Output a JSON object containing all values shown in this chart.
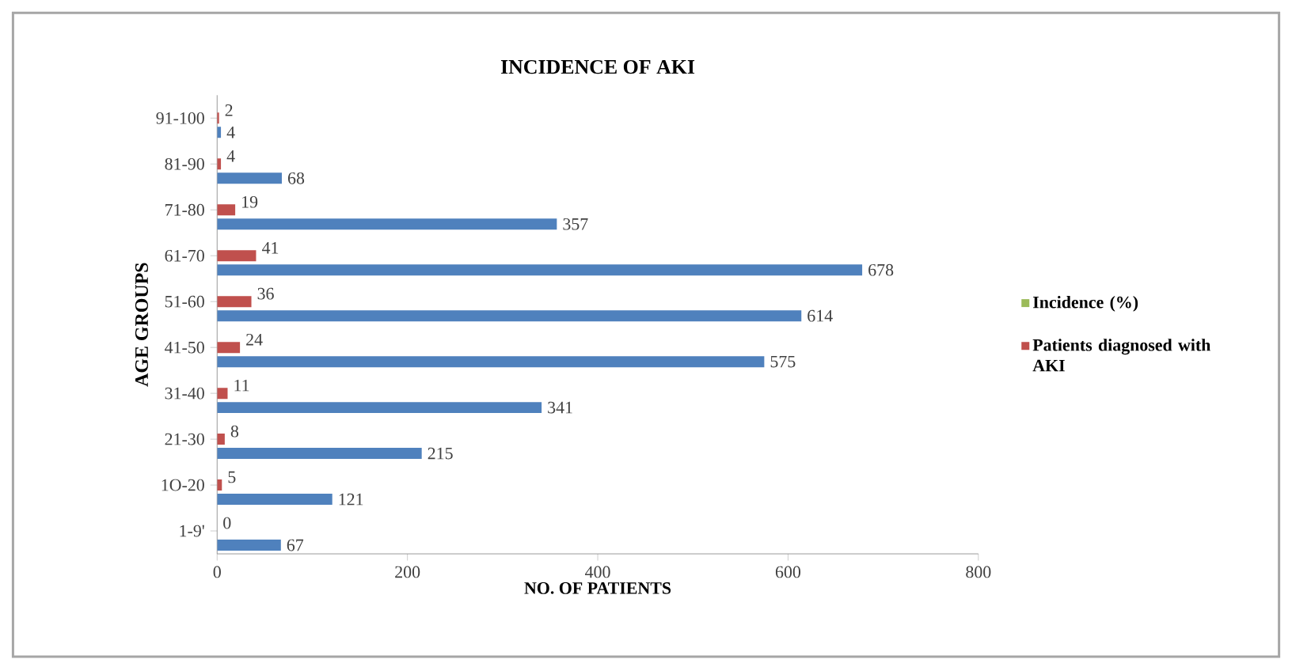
{
  "chart_data": {
    "type": "bar",
    "orientation": "horizontal",
    "title": "INCIDENCE OF AKI",
    "xlabel": "NO. OF PATIENTS",
    "ylabel": "AGE GROUPS",
    "categories": [
      "91-100",
      "81-90",
      "71-80",
      "61-70",
      "51-60",
      "41-50",
      "31-40",
      "21-30",
      "1O-20",
      "1-9'"
    ],
    "series": [
      {
        "color": "#4f81bd",
        "values": [
          4,
          68,
          357,
          678,
          614,
          575,
          341,
          215,
          121,
          67
        ]
      },
      {
        "name": "Patients diagnosed with AKI",
        "color": "#c0504d",
        "values": [
          2,
          4,
          19,
          41,
          36,
          24,
          11,
          8,
          5,
          0
        ]
      },
      {
        "name": "Incidence (%)",
        "color": "#9bbb59",
        "values": [
          null,
          null,
          null,
          null,
          null,
          null,
          null,
          null,
          null,
          null
        ]
      }
    ],
    "xlim": [
      0,
      800
    ],
    "xticks": [
      0,
      200,
      400,
      600,
      800
    ],
    "grid": false,
    "legend": "right",
    "data_labels": true
  }
}
